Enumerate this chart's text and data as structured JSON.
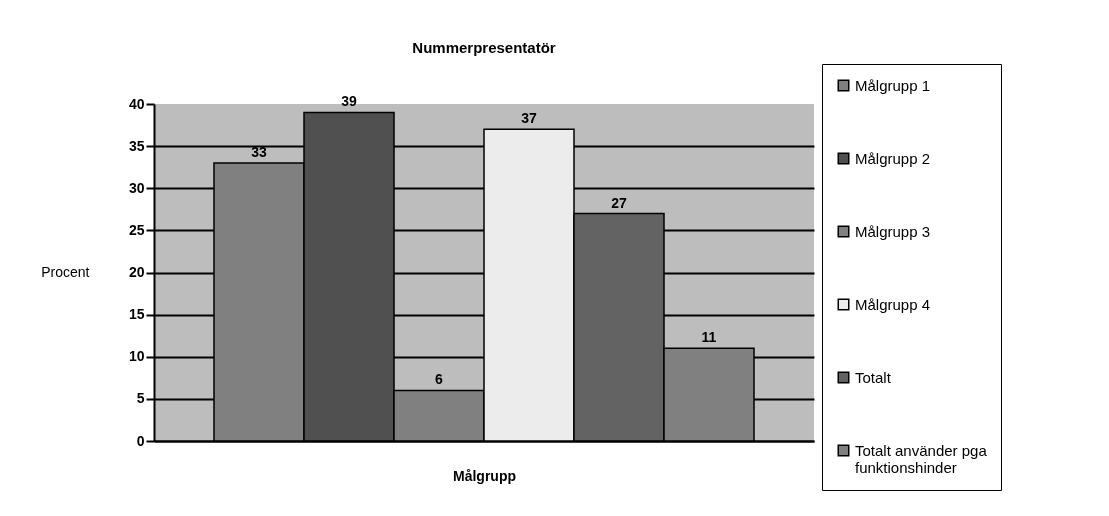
{
  "chart_data": {
    "type": "bar",
    "title": "Nummerpresentatör",
    "xlabel": "Målgrupp",
    "ylabel": "Procent",
    "categories": [
      null
    ],
    "series": [
      {
        "name": "Målgrupp 1",
        "color": "#808080",
        "values": [
          33
        ]
      },
      {
        "name": "Målgrupp 2",
        "color": "#505050",
        "values": [
          39
        ]
      },
      {
        "name": "Målgrupp 3",
        "color": "#808080",
        "values": [
          6
        ]
      },
      {
        "name": "Målgrupp 4",
        "color": "#ececec",
        "values": [
          37
        ]
      },
      {
        "name": "Totalt",
        "color": "#636363",
        "values": [
          27
        ]
      },
      {
        "name": "Totalt använder pga funktionshinder",
        "color": "#808080",
        "values": [
          11
        ]
      }
    ],
    "ylim": [
      0,
      40
    ],
    "yticks": [
      0,
      5,
      10,
      15,
      20,
      25,
      30,
      35,
      40
    ],
    "grid": "y",
    "legend": "right",
    "data_labels": true,
    "tick_labels": "y"
  }
}
